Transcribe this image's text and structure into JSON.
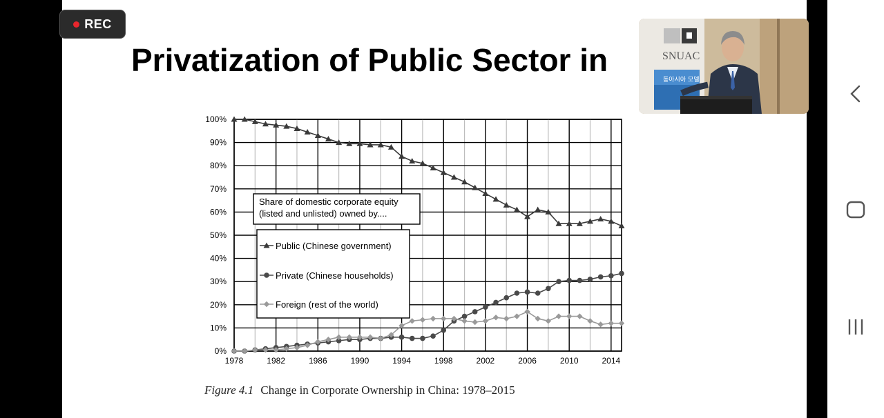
{
  "recording": {
    "label": "REC",
    "color": "#e8262d"
  },
  "slide": {
    "title": "Privatization of Public Sector in",
    "caption_label": "Figure 4.1",
    "caption_text": "Change in Corporate Ownership in China: 1978–2015"
  },
  "video": {
    "logo_text": "SNUAC",
    "banner_text": "동아시아 모델"
  },
  "navigation": {
    "back": "back-icon",
    "home": "home-icon",
    "recents": "recents-icon"
  },
  "chart_data": {
    "type": "line",
    "title": "",
    "xlabel": "",
    "ylabel": "",
    "xlim": [
      1978,
      2015
    ],
    "ylim": [
      0,
      100
    ],
    "x_ticks": [
      "1978",
      "1982",
      "1986",
      "1990",
      "1994",
      "1998",
      "2002",
      "2006",
      "2010",
      "2014"
    ],
    "y_ticks": [
      "0%",
      "10%",
      "20%",
      "30%",
      "40%",
      "50%",
      "60%",
      "70%",
      "80%",
      "90%",
      "100%"
    ],
    "legend_title": [
      "Share of domestic corporate equity",
      "(listed and unlisted) owned by...."
    ],
    "x": [
      1978,
      1979,
      1980,
      1981,
      1982,
      1983,
      1984,
      1985,
      1986,
      1987,
      1988,
      1989,
      1990,
      1991,
      1992,
      1993,
      1994,
      1995,
      1996,
      1997,
      1998,
      1999,
      2000,
      2001,
      2002,
      2003,
      2004,
      2005,
      2006,
      2007,
      2008,
      2009,
      2010,
      2011,
      2012,
      2013,
      2014,
      2015
    ],
    "series": [
      {
        "name": "Public (Chinese government)",
        "marker": "triangle",
        "color": "#3a3a3a",
        "values": [
          100,
          100,
          99,
          98,
          97.5,
          97,
          96,
          94.5,
          93,
          91.5,
          90,
          89.5,
          89.5,
          89,
          89,
          88,
          84,
          82,
          81,
          79,
          77,
          75,
          73,
          70.5,
          68,
          65.5,
          63,
          61,
          58,
          61,
          60,
          55,
          55,
          55,
          56,
          57,
          56,
          54
        ]
      },
      {
        "name": "Private (Chinese households)",
        "marker": "circle",
        "color": "#4a4a4a",
        "values": [
          0,
          0,
          0.5,
          1,
          1.5,
          2,
          2.5,
          3,
          3.5,
          4,
          4.5,
          5,
          5,
          5.5,
          5.5,
          6,
          6,
          5.5,
          5.5,
          6.5,
          9,
          13,
          15,
          17,
          19,
          21,
          23,
          25,
          25.5,
          25,
          27,
          30,
          30.5,
          30.5,
          31,
          32,
          32.5,
          33.5
        ]
      },
      {
        "name": "Foreign (rest of the world)",
        "marker": "diamond",
        "color": "#9a9a9a",
        "values": [
          0,
          0,
          0.5,
          0.5,
          0.5,
          1,
          1.5,
          2.5,
          4,
          5,
          6,
          6,
          6,
          6,
          5.5,
          7,
          11,
          13,
          13.5,
          14,
          14,
          14,
          13,
          12.5,
          13,
          14.5,
          14,
          15,
          17,
          14,
          13,
          15,
          15,
          15,
          13,
          11.5,
          12,
          12
        ]
      }
    ]
  }
}
